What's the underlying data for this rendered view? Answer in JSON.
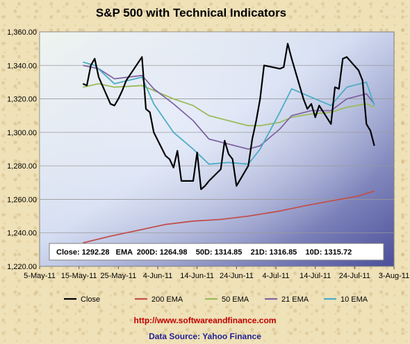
{
  "footer": {
    "url": "http://www.softwareandfinance.com",
    "source": "Data Source: Yahoo Finance"
  },
  "chart_data": {
    "type": "line",
    "title": "S&P 500 with Technical Indicators",
    "xlabel": "",
    "ylabel": "",
    "x_ticks": [
      "5-May-11",
      "15-May-11",
      "25-May-11",
      "4-Jun-11",
      "14-Jun-11",
      "24-Jun-11",
      "4-Jul-11",
      "14-Jul-11",
      "24-Jul-11",
      "3-Aug-11"
    ],
    "y_ticks": [
      "1,220.00",
      "1,240.00",
      "1,260.00",
      "1,280.00",
      "1,300.00",
      "1,320.00",
      "1,340.00",
      "1,360.00"
    ],
    "ylim": [
      1220,
      1360
    ],
    "xlim_days": [
      0,
      90
    ],
    "grid": "horizontal",
    "legend_position": "bottom",
    "summary": "Close: 1292.28   EMA  200D: 1264.98    50D: 1314.85    21D: 1316.85    10D: 1315.72",
    "colors": {
      "Close": "#000000",
      "200 EMA": "#c0504d",
      "50 EMA": "#9bbb59",
      "21 EMA": "#8064a2",
      "10 EMA": "#4bacc6"
    },
    "series": [
      {
        "name": "Close",
        "x": [
          "2011-05-16",
          "2011-05-17",
          "2011-05-18",
          "2011-05-19",
          "2011-05-20",
          "2011-05-23",
          "2011-05-24",
          "2011-05-25",
          "2011-05-26",
          "2011-05-27",
          "2011-05-31",
          "2011-06-01",
          "2011-06-02",
          "2011-06-03",
          "2011-06-06",
          "2011-06-07",
          "2011-06-08",
          "2011-06-09",
          "2011-06-10",
          "2011-06-13",
          "2011-06-14",
          "2011-06-15",
          "2011-06-16",
          "2011-06-17",
          "2011-06-20",
          "2011-06-21",
          "2011-06-22",
          "2011-06-23",
          "2011-06-24",
          "2011-06-27",
          "2011-06-28",
          "2011-06-29",
          "2011-06-30",
          "2011-07-01",
          "2011-07-05",
          "2011-07-06",
          "2011-07-07",
          "2011-07-08",
          "2011-07-11",
          "2011-07-12",
          "2011-07-13",
          "2011-07-14",
          "2011-07-15",
          "2011-07-18",
          "2011-07-19",
          "2011-07-20",
          "2011-07-21",
          "2011-07-22",
          "2011-07-25",
          "2011-07-26",
          "2011-07-27",
          "2011-07-28",
          "2011-07-29"
        ],
        "values": [
          1329,
          1328,
          1340,
          1344,
          1333,
          1317,
          1316,
          1320,
          1325,
          1331,
          1345,
          1314,
          1312,
          1300,
          1286,
          1284,
          1279,
          1289,
          1271,
          1271,
          1288,
          1266,
          1268,
          1271,
          1278,
          1295,
          1287,
          1284,
          1268,
          1280,
          1296,
          1307,
          1320,
          1340,
          1338,
          1339,
          1353,
          1344,
          1320,
          1314,
          1317,
          1309,
          1316,
          1305,
          1327,
          1326,
          1344,
          1345,
          1337,
          1331,
          1305,
          1301,
          1292
        ]
      },
      {
        "name": "200 EMA",
        "x": [
          "2011-05-16",
          "2011-05-23",
          "2011-05-31",
          "2011-06-06",
          "2011-06-13",
          "2011-06-20",
          "2011-06-27",
          "2011-07-05",
          "2011-07-11",
          "2011-07-18",
          "2011-07-25",
          "2011-07-29"
        ],
        "values": [
          1234,
          1238,
          1242,
          1245,
          1247,
          1248,
          1250,
          1253,
          1256,
          1259,
          1262,
          1265
        ]
      },
      {
        "name": "50 EMA",
        "x": [
          "2011-05-16",
          "2011-05-20",
          "2011-05-24",
          "2011-05-31",
          "2011-06-03",
          "2011-06-08",
          "2011-06-13",
          "2011-06-17",
          "2011-06-22",
          "2011-06-27",
          "2011-06-30",
          "2011-07-05",
          "2011-07-08",
          "2011-07-13",
          "2011-07-18",
          "2011-07-22",
          "2011-07-27",
          "2011-07-29"
        ],
        "values": [
          1327,
          1329,
          1327,
          1328,
          1325,
          1320,
          1316,
          1310,
          1307,
          1304,
          1304,
          1306,
          1309,
          1311,
          1312,
          1315,
          1317,
          1315
        ]
      },
      {
        "name": "21 EMA",
        "x": [
          "2011-05-16",
          "2011-05-20",
          "2011-05-24",
          "2011-05-31",
          "2011-06-03",
          "2011-06-08",
          "2011-06-13",
          "2011-06-17",
          "2011-06-22",
          "2011-06-27",
          "2011-06-30",
          "2011-07-05",
          "2011-07-08",
          "2011-07-13",
          "2011-07-18",
          "2011-07-22",
          "2011-07-27",
          "2011-07-29"
        ],
        "values": [
          1340,
          1338,
          1332,
          1334,
          1326,
          1317,
          1307,
          1296,
          1293,
          1290,
          1292,
          1302,
          1310,
          1313,
          1313,
          1320,
          1323,
          1317
        ]
      },
      {
        "name": "10 EMA",
        "x": [
          "2011-05-16",
          "2011-05-19",
          "2011-05-24",
          "2011-05-31",
          "2011-06-03",
          "2011-06-08",
          "2011-06-13",
          "2011-06-17",
          "2011-06-22",
          "2011-06-27",
          "2011-06-30",
          "2011-07-05",
          "2011-07-08",
          "2011-07-13",
          "2011-07-18",
          "2011-07-22",
          "2011-07-27",
          "2011-07-29"
        ],
        "values": [
          1342,
          1340,
          1329,
          1333,
          1317,
          1300,
          1290,
          1281,
          1282,
          1281,
          1290,
          1312,
          1326,
          1321,
          1316,
          1327,
          1330,
          1316
        ]
      }
    ]
  }
}
